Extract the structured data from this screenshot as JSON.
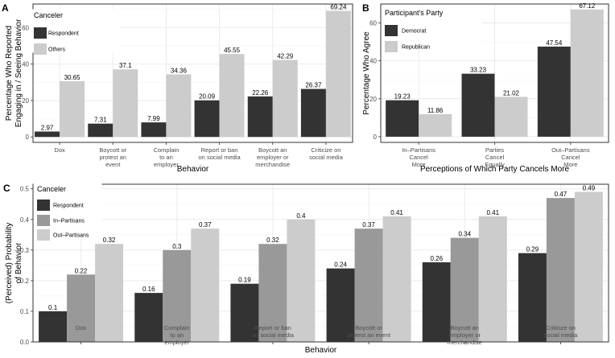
{
  "colors": {
    "dark": "#333333",
    "mid": "#999999",
    "light": "#cccccc",
    "grid": "#ebebeb",
    "panel_border": "#333333"
  },
  "chart_data": [
    {
      "panel_label": "A",
      "type": "bar",
      "title": "",
      "xlabel": "Behavior",
      "ylabel_lines": [
        "Percentage Who Reported",
        "Engaging in / Seeing Behavior"
      ],
      "ylim": [
        -3,
        73
      ],
      "yticks": [
        0,
        20,
        40,
        60
      ],
      "categories": [
        [
          "Dox"
        ],
        [
          "Boycott or",
          "protest an",
          "event"
        ],
        [
          "Complain",
          "to an",
          "employer"
        ],
        [
          "Report or ban",
          "on social media"
        ],
        [
          "Boycott an",
          "employer or",
          "merchandise"
        ],
        [
          "Criticize on",
          "social media"
        ]
      ],
      "legend_title": "Canceler",
      "series": [
        {
          "name": "Respondent",
          "color_key": "dark",
          "values": [
            2.97,
            7.31,
            7.99,
            20.09,
            22.26,
            26.37
          ],
          "labels": [
            "2.97",
            "7.31",
            "7.99",
            "20.09",
            "22.26",
            "26.37"
          ]
        },
        {
          "name": "Others",
          "color_key": "light",
          "values": [
            30.65,
            37.1,
            34.36,
            45.55,
            42.29,
            69.24
          ],
          "labels": [
            "30.65",
            "37.1",
            "34.36",
            "45.55",
            "42.29",
            "69.24"
          ]
        }
      ]
    },
    {
      "panel_label": "B",
      "type": "bar",
      "title": "",
      "xlabel": "Perceptions of Which Party Cancels More",
      "ylabel_lines": [
        "Percentage Who Agree"
      ],
      "ylim": [
        -3,
        70
      ],
      "yticks": [
        0,
        20,
        40,
        60
      ],
      "categories": [
        [
          "In–Partisans",
          "Cancel",
          "More"
        ],
        [
          "Parties",
          "Cancel",
          "Equally"
        ],
        [
          "Out–Partisans",
          "Cancel",
          "More"
        ]
      ],
      "legend_title": "Participant's Party",
      "series": [
        {
          "name": "Democrat",
          "color_key": "dark",
          "values": [
            19.23,
            33.23,
            47.54
          ],
          "labels": [
            "19.23",
            "33.23",
            "47.54"
          ]
        },
        {
          "name": "Republican",
          "color_key": "light",
          "values": [
            11.86,
            21.02,
            67.12
          ],
          "labels": [
            "11.86",
            "21.02",
            "67.12"
          ]
        }
      ]
    },
    {
      "panel_label": "C",
      "type": "bar",
      "title": "",
      "xlabel": "Behavior",
      "ylabel_lines": [
        "(Perceived) Probability",
        "of Behavior"
      ],
      "ylim": [
        0,
        0.515
      ],
      "yticks": [
        0,
        0.1,
        0.2,
        0.3,
        0.4,
        0.5
      ],
      "ytick_labels": [
        "0.0",
        "0.1",
        "0.2",
        "0.3",
        "0.4",
        "0.5"
      ],
      "categories": [
        [
          "Dox"
        ],
        [
          "Complain",
          "to an",
          "employer"
        ],
        [
          "Report or ban",
          "on social media"
        ],
        [
          "Boycott or",
          "protest an event"
        ],
        [
          "Boycott an",
          "employer or",
          "merchandise"
        ],
        [
          "Criticize on",
          "social media"
        ]
      ],
      "legend_title": "Canceler",
      "series": [
        {
          "name": "Respondent",
          "color_key": "dark",
          "values": [
            0.1,
            0.16,
            0.19,
            0.24,
            0.26,
            0.29
          ],
          "labels": [
            "0.1",
            "0.16",
            "0.19",
            "0.24",
            "0.26",
            "0.29"
          ]
        },
        {
          "name": "In–Partisans",
          "color_key": "mid",
          "values": [
            0.22,
            0.3,
            0.32,
            0.37,
            0.34,
            0.47
          ],
          "labels": [
            "0.22",
            "0.3",
            "0.32",
            "0.37",
            "0.34",
            "0.47"
          ]
        },
        {
          "name": "Out–Partisans",
          "color_key": "light",
          "values": [
            0.32,
            0.37,
            0.4,
            0.41,
            0.41,
            0.49
          ],
          "labels": [
            "0.32",
            "0.37",
            "0.4",
            "0.41",
            "0.41",
            "0.49"
          ]
        }
      ]
    }
  ]
}
